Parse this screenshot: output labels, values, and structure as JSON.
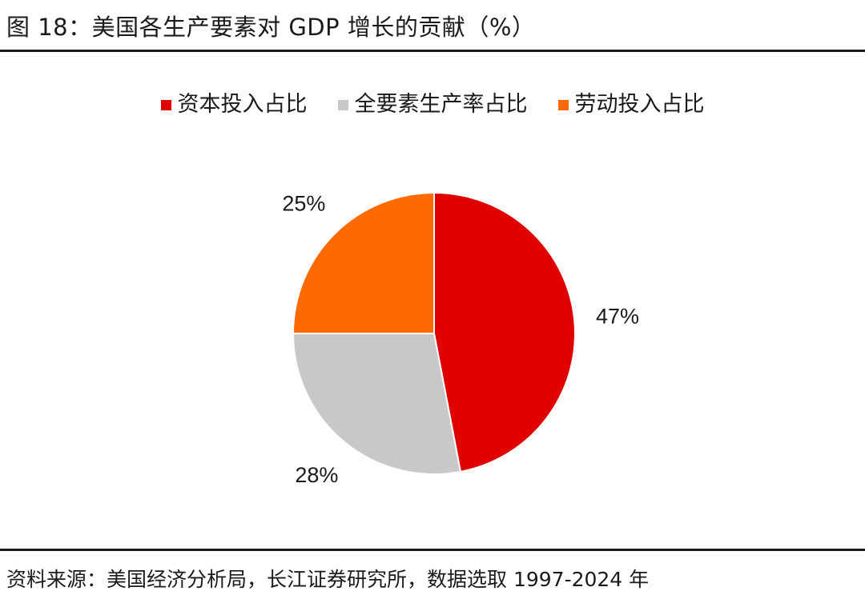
{
  "title": "图 18：美国各生产要素对 GDP 增长的贡献（%）",
  "source": "资料来源：美国经济分析局，长江证券研究所，数据选取 1997-2024 年",
  "chart_data": {
    "type": "pie",
    "title": "",
    "legend_position": "top",
    "slices": [
      {
        "name": "资本投入占比",
        "value": 47,
        "label": "47%",
        "color": "#e00000"
      },
      {
        "name": "全要素生产率占比",
        "value": 28,
        "label": "28%",
        "color": "#c8c8c8"
      },
      {
        "name": "劳动投入占比",
        "value": 25,
        "label": "25%",
        "color": "#ff6a00"
      }
    ]
  }
}
